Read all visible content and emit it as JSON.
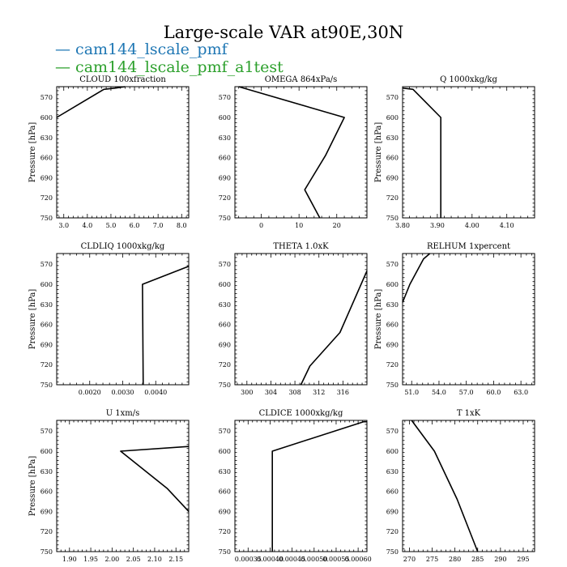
{
  "figure": {
    "title": "Large-scale VAR at90E,30N",
    "legend": [
      {
        "name": "cam144_lscale_pmf",
        "color": "#1f77b4"
      },
      {
        "name": "cam144_lscale_pmf_a1test",
        "color": "#2ca02c"
      }
    ],
    "line_color": "#000000"
  },
  "chart_data": [
    {
      "type": "line",
      "title": "CLOUD  100xfraction",
      "ylabel": "Pressure [hPa]",
      "xlim": [
        2.7,
        8.3
      ],
      "ylim": [
        750,
        554
      ],
      "y_inverted": true,
      "xticks": [
        3.0,
        4.0,
        5.0,
        6.0,
        7.0,
        8.0
      ],
      "xtick_labels": [
        "3.0",
        "4.0",
        "5.0",
        "6.0",
        "7.0",
        "8.0"
      ],
      "yticks": [
        570,
        600,
        630,
        660,
        690,
        720,
        750
      ],
      "ytick_labels": [
        "570",
        "600",
        "630",
        "660",
        "690",
        "720",
        "750"
      ],
      "series": [
        {
          "x": [
            2.7,
            4.7,
            5.2,
            5.6
          ],
          "y": [
            600,
            558,
            556,
            554
          ]
        }
      ]
    },
    {
      "type": "line",
      "title": "OMEGA  864xPa/s",
      "ylabel": "",
      "xlim": [
        -7,
        28
      ],
      "ylim": [
        750,
        554
      ],
      "y_inverted": true,
      "xticks": [
        0,
        10,
        20
      ],
      "xtick_labels": [
        "0",
        "10",
        "20"
      ],
      "yticks": [
        570,
        600,
        630,
        660,
        690,
        720,
        750
      ],
      "ytick_labels": [
        "570",
        "600",
        "630",
        "660",
        "690",
        "720",
        "750"
      ],
      "series": [
        {
          "x": [
            -6,
            22,
            17,
            11.5,
            15.5
          ],
          "y": [
            554,
            600,
            657,
            708,
            750
          ]
        }
      ]
    },
    {
      "type": "line",
      "title": "Q  1000xkg/kg",
      "ylabel": "Pressure [hPa]",
      "xlim": [
        3.8,
        4.18
      ],
      "ylim": [
        750,
        554
      ],
      "y_inverted": true,
      "xticks": [
        3.8,
        3.9,
        4.0,
        4.1
      ],
      "xtick_labels": [
        "3.80",
        "3.90",
        "4.00",
        "4.10"
      ],
      "yticks": [
        570,
        600,
        630,
        660,
        690,
        720,
        750
      ],
      "ytick_labels": [
        "570",
        "600",
        "630",
        "660",
        "690",
        "720",
        "750"
      ],
      "series": [
        {
          "x": [
            3.8,
            3.83,
            3.91,
            3.91,
            3.91
          ],
          "y": [
            556,
            558,
            600,
            700,
            750
          ]
        }
      ]
    },
    {
      "type": "line",
      "title": "CLDLIQ  1000xkg/kg",
      "ylabel": "Pressure [hPa]",
      "xlim": [
        0.001,
        0.005
      ],
      "ylim": [
        750,
        554
      ],
      "y_inverted": true,
      "xticks": [
        0.002,
        0.003,
        0.004
      ],
      "xtick_labels": [
        "0.0020",
        "0.0030",
        "0.0040"
      ],
      "yticks": [
        570,
        600,
        630,
        660,
        690,
        720,
        750
      ],
      "ytick_labels": [
        "570",
        "600",
        "630",
        "660",
        "690",
        "720",
        "750"
      ],
      "series": [
        {
          "x": [
            0.005,
            0.0036,
            0.00362
          ],
          "y": [
            573,
            600,
            750
          ]
        }
      ]
    },
    {
      "type": "line",
      "title": "THETA  1.0xK",
      "ylabel": "",
      "xlim": [
        298,
        320
      ],
      "ylim": [
        750,
        554
      ],
      "y_inverted": true,
      "xticks": [
        300,
        304,
        308,
        312,
        316
      ],
      "xtick_labels": [
        "300",
        "304",
        "308",
        "312",
        "316"
      ],
      "yticks": [
        570,
        600,
        630,
        660,
        690,
        720,
        750
      ],
      "ytick_labels": [
        "570",
        "600",
        "630",
        "660",
        "690",
        "720",
        "750"
      ],
      "series": [
        {
          "x": [
            320,
            315.5,
            310.5,
            309
          ],
          "y": [
            580,
            672,
            722,
            750
          ]
        }
      ]
    },
    {
      "type": "line",
      "title": "RELHUM  1xpercent",
      "ylabel": "Pressure [hPa]",
      "xlim": [
        50.0,
        64.5
      ],
      "ylim": [
        750,
        554
      ],
      "y_inverted": true,
      "xticks": [
        51.0,
        54.0,
        57.0,
        60.0,
        63.0
      ],
      "xtick_labels": [
        "51.0",
        "54.0",
        "57.0",
        "60.0",
        "63.0"
      ],
      "yticks": [
        570,
        600,
        630,
        660,
        690,
        720,
        750
      ],
      "ytick_labels": [
        "570",
        "600",
        "630",
        "660",
        "690",
        "720",
        "750"
      ],
      "series": [
        {
          "x": [
            50.0,
            50.8,
            52.3,
            53.0
          ],
          "y": [
            627,
            600,
            562,
            554
          ]
        }
      ]
    },
    {
      "type": "line",
      "title": "U  1xm/s",
      "ylabel": "Pressure [hPa]",
      "xlim": [
        1.87,
        2.18
      ],
      "ylim": [
        750,
        554
      ],
      "y_inverted": true,
      "xticks": [
        1.9,
        1.95,
        2.0,
        2.05,
        2.1,
        2.15
      ],
      "xtick_labels": [
        "1.90",
        "1.95",
        "2.00",
        "2.05",
        "2.10",
        "2.15"
      ],
      "yticks": [
        570,
        600,
        630,
        660,
        690,
        720,
        750
      ],
      "ytick_labels": [
        "570",
        "600",
        "630",
        "660",
        "690",
        "720",
        "750"
      ],
      "series": [
        {
          "x": [
            2.18,
            2.02,
            2.13,
            2.18
          ],
          "y": [
            593,
            600,
            656,
            690
          ]
        }
      ]
    },
    {
      "type": "line",
      "title": "CLDICE  1000xkg/kg",
      "ylabel": "",
      "xlim": [
        0.00032,
        0.00062
      ],
      "ylim": [
        750,
        554
      ],
      "y_inverted": true,
      "xticks": [
        0.00035,
        0.0004,
        0.00045,
        0.0005,
        0.00055,
        0.0006
      ],
      "xtick_labels": [
        "0.00035",
        "0.00040",
        "0.00045",
        "0.00050",
        "0.00055",
        "0.00060"
      ],
      "yticks": [
        570,
        600,
        630,
        660,
        690,
        720,
        750
      ],
      "ytick_labels": [
        "570",
        "600",
        "630",
        "660",
        "690",
        "720",
        "750"
      ],
      "series": [
        {
          "x": [
            0.00062,
            0.000612,
            0.000405,
            0.000405
          ],
          "y": [
            556,
            556,
            600,
            750
          ]
        }
      ]
    },
    {
      "type": "line",
      "title": "T  1xK",
      "ylabel": "",
      "xlim": [
        268.5,
        297.5
      ],
      "ylim": [
        750,
        554
      ],
      "y_inverted": true,
      "xticks": [
        270,
        275,
        280,
        285,
        290,
        295
      ],
      "xtick_labels": [
        "270",
        "275",
        "280",
        "285",
        "290",
        "295"
      ],
      "yticks": [
        570,
        600,
        630,
        660,
        690,
        720,
        750
      ],
      "ytick_labels": [
        "570",
        "600",
        "630",
        "660",
        "690",
        "720",
        "750"
      ],
      "series": [
        {
          "x": [
            270.5,
            275.5,
            280.5,
            285
          ],
          "y": [
            554,
            600,
            672,
            750
          ]
        }
      ]
    }
  ]
}
